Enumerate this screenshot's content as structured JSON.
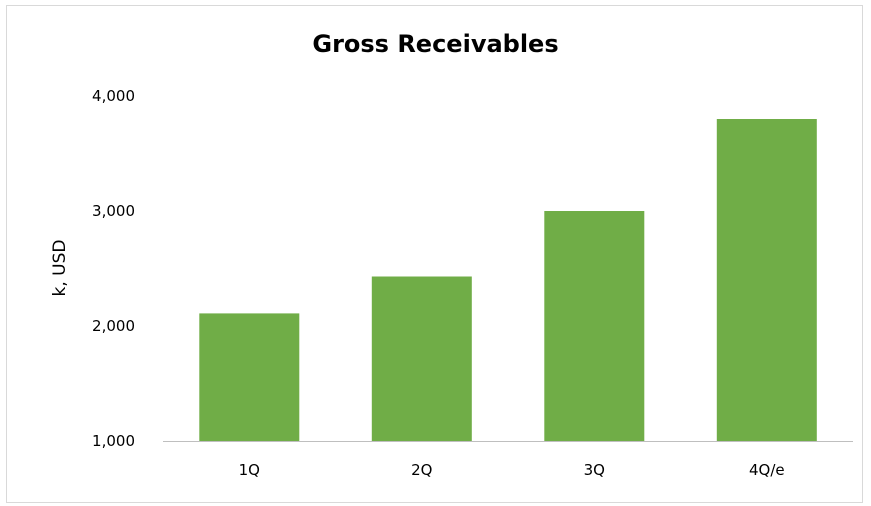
{
  "chart_data": {
    "type": "bar",
    "title": "Gross Receivables",
    "xlabel": "",
    "ylabel": "k, USD",
    "categories": [
      "1Q",
      "2Q",
      "3Q",
      "4Q/e"
    ],
    "values": [
      2110,
      2430,
      3000,
      3800
    ],
    "ylim": [
      1000,
      4000
    ],
    "yticks": [
      1000,
      2000,
      3000,
      4000
    ],
    "ytick_labels": [
      "1,000",
      "2,000",
      "3,000",
      "4,000"
    ],
    "bar_color": "#70ad47",
    "axis_color": "#bfbfbf",
    "grid": false,
    "legend": "none"
  }
}
